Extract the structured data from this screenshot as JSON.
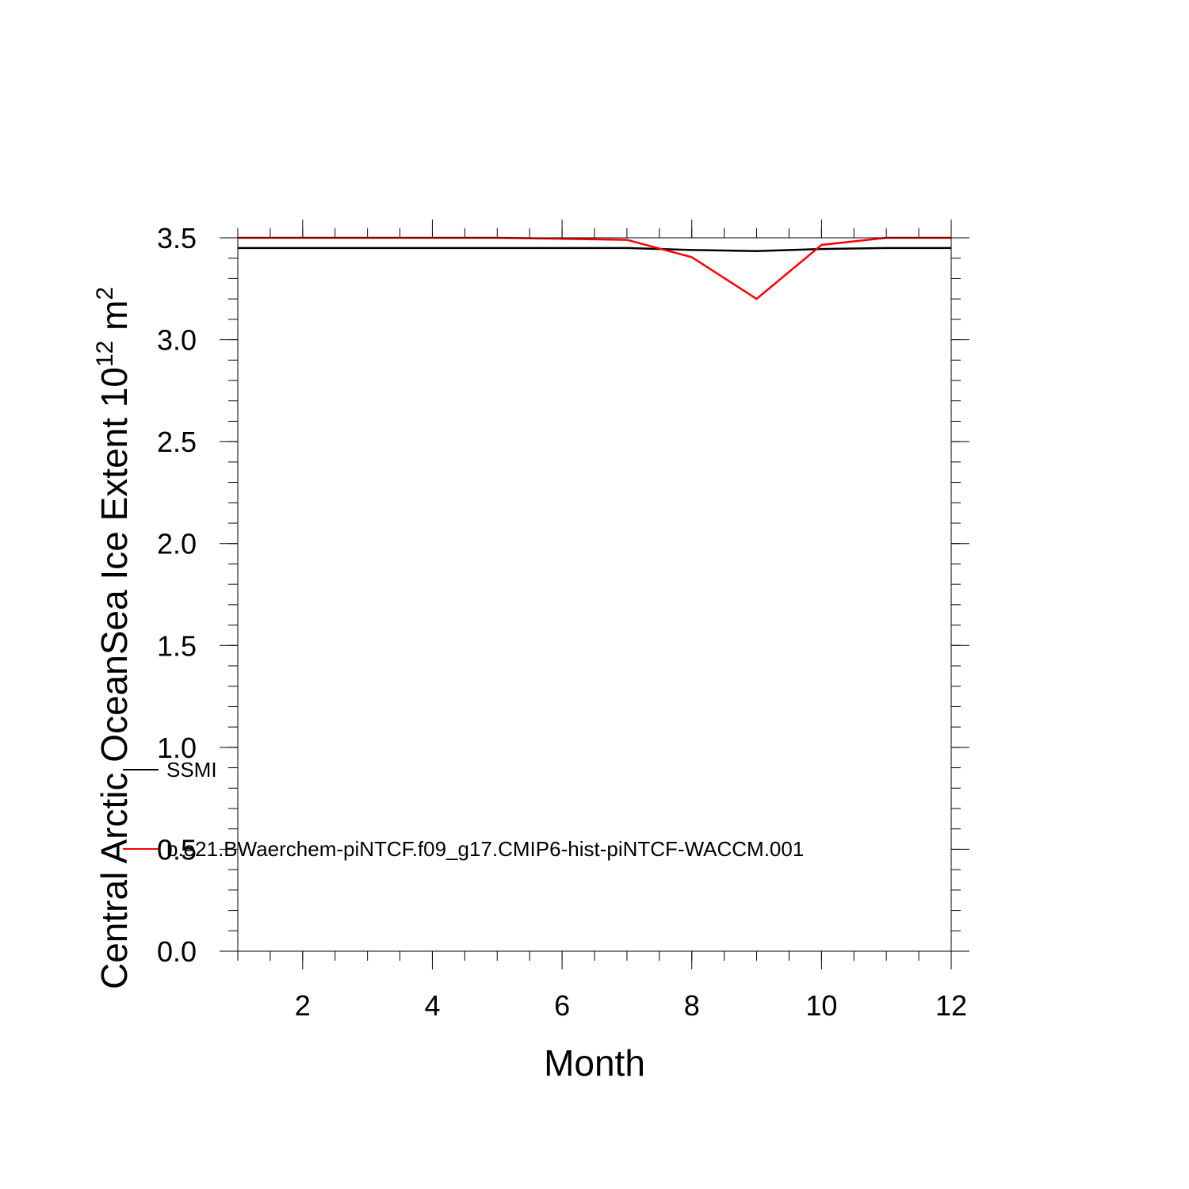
{
  "chart_data": {
    "type": "line",
    "xlabel": "Month",
    "ylabel": "Central Arctic OceanSea Ice Extent 10",
    "ylabel_exponent": "12",
    "ylabel_unit": "m",
    "ylabel_unit_exponent": "2",
    "xlim": [
      1,
      12
    ],
    "ylim": [
      0,
      3.5
    ],
    "x_ticks": [
      2,
      4,
      6,
      8,
      10,
      12
    ],
    "x_tick_labels": [
      "2",
      "4",
      "6",
      "8",
      "10",
      "12"
    ],
    "y_ticks": [
      0,
      0.5,
      1,
      1.5,
      2,
      2.5,
      3,
      3.5
    ],
    "y_tick_labels": [
      "0.0",
      "0.5",
      "1.0",
      "1.5",
      "2.0",
      "2.5",
      "3.0",
      "3.5"
    ],
    "grid": false,
    "x": [
      1,
      2,
      3,
      4,
      5,
      6,
      7,
      8,
      9,
      10,
      11,
      12
    ],
    "series": [
      {
        "name": "SSMI",
        "color": "#000000",
        "values": [
          3.45,
          3.45,
          3.45,
          3.45,
          3.45,
          3.45,
          3.45,
          3.44,
          3.435,
          3.445,
          3.45,
          3.45
        ]
      },
      {
        "name": "b.e21.BWaerchem-piNTCF.f09_g17.CMIP6-hist-piNTCF-WACCM.001",
        "color": "#ff0000",
        "values": [
          3.5,
          3.5,
          3.5,
          3.5,
          3.5,
          3.495,
          3.49,
          3.405,
          3.2,
          3.465,
          3.5,
          3.5
        ]
      }
    ]
  }
}
